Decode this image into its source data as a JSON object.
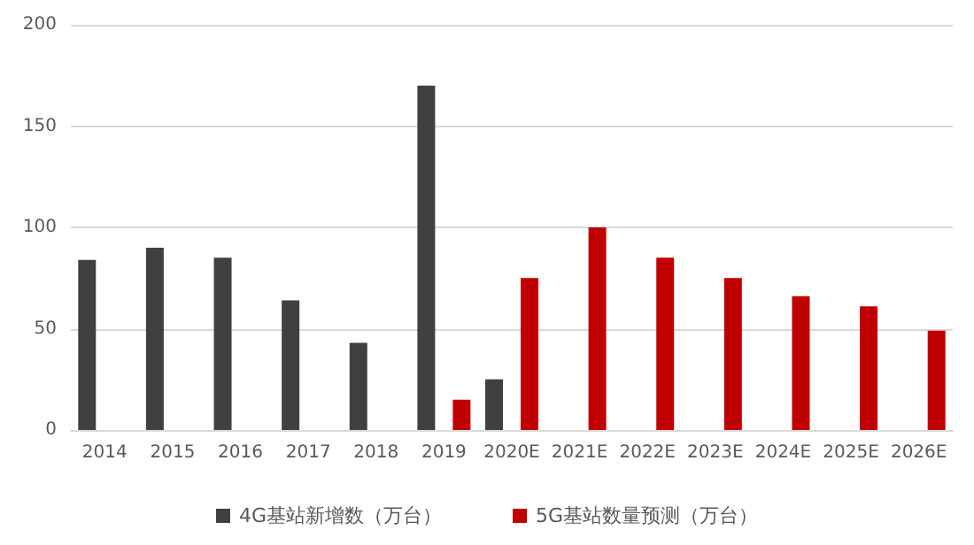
{
  "chart_data": {
    "type": "bar",
    "categories": [
      "2014",
      "2015",
      "2016",
      "2017",
      "2018",
      "2019",
      "2020E",
      "2021E",
      "2022E",
      "2023E",
      "2024E",
      "2025E",
      "2026E"
    ],
    "series": [
      {
        "name": "4G基站新增数（万台）",
        "color": "#404040",
        "values": [
          84,
          90,
          85,
          64,
          43,
          170,
          25,
          null,
          null,
          null,
          null,
          null,
          null
        ]
      },
      {
        "name": "5G基站数量预测（万台）",
        "color": "#c00000",
        "values": [
          null,
          null,
          null,
          null,
          null,
          15,
          75,
          100,
          85,
          75,
          66,
          61,
          49
        ]
      }
    ],
    "ylim": [
      0,
      200
    ],
    "yticks": [
      0,
      50,
      100,
      150,
      200
    ],
    "grid": "y",
    "legend": "bottom"
  }
}
